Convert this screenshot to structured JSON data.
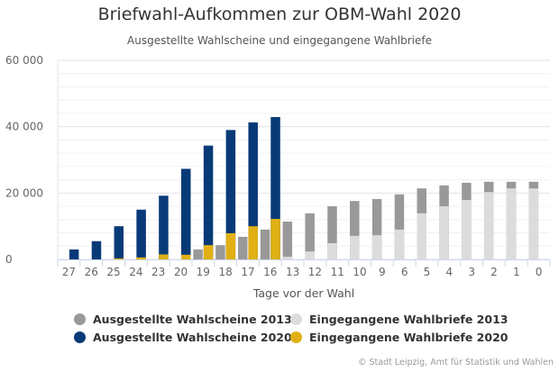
{
  "chart_data": {
    "type": "bar",
    "stacking": "stacked-grouped",
    "title": "Briefwahl-Aufkommen zur OBM-Wahl 2020",
    "subtitle": "Ausgestellte Wahlscheine und eingegangene Wahlbriefe",
    "xlabel": "Tage vor der Wahl",
    "ylabel": "",
    "ylim": [
      0,
      60000
    ],
    "yticks": [
      0,
      20000,
      40000,
      60000
    ],
    "ytick_labels": [
      "0",
      "20 000",
      "40 000",
      "60 000"
    ],
    "minor_grid_step": 4000,
    "grid": true,
    "categories": [
      "27",
      "26",
      "25",
      "24",
      "23",
      "20",
      "19",
      "18",
      "17",
      "16",
      "13",
      "12",
      "11",
      "10",
      "9",
      "6",
      "5",
      "4",
      "3",
      "2",
      "1",
      "0"
    ],
    "series": [
      {
        "name": "Ausgestellte Wahlscheine 2013",
        "stack": "2013",
        "color": "#999999",
        "values": [
          0,
          0,
          0,
          0,
          0,
          0,
          3000,
          4300,
          6800,
          9000,
          11400,
          13900,
          16000,
          17600,
          18200,
          19600,
          21400,
          22300,
          23100,
          23400,
          23400,
          23400
        ]
      },
      {
        "name": "Eingegangene Wahlbriefe 2013",
        "stack": "2013",
        "color": "#dcdcdc",
        "values": [
          0,
          0,
          0,
          0,
          0,
          0,
          0,
          0,
          0,
          0,
          800,
          2400,
          4900,
          7100,
          7300,
          9000,
          13900,
          16000,
          17900,
          20300,
          21400,
          21400
        ]
      },
      {
        "name": "Ausgestellte Wahlscheine 2020",
        "stack": "2020",
        "color": "#083a78",
        "values": [
          3000,
          5500,
          10000,
          15000,
          19200,
          27300,
          34300,
          39000,
          41300,
          42900,
          null,
          null,
          null,
          null,
          null,
          null,
          null,
          null,
          null,
          null,
          null,
          null
        ]
      },
      {
        "name": "Eingegangene Wahlbriefe 2020",
        "stack": "2020",
        "color": "#e0b015",
        "values": [
          0,
          0,
          300,
          600,
          1500,
          1400,
          4300,
          7900,
          10000,
          12200,
          null,
          null,
          null,
          null,
          null,
          null,
          null,
          null,
          null,
          null,
          null,
          null
        ]
      }
    ],
    "legend": {
      "position": "bottom",
      "items": [
        {
          "label": "Ausgestellte Wahlscheine 2013",
          "color": "#999999"
        },
        {
          "label": "Eingegangene Wahlbriefe 2013",
          "color": "#dcdcdc"
        },
        {
          "label": "Ausgestellte Wahlscheine 2020",
          "color": "#083a78"
        },
        {
          "label": "Eingegangene Wahlbriefe 2020",
          "color": "#e0b015"
        }
      ]
    },
    "credit": "© Stadt Leipzig, Amt für Statistik und Wahlen"
  }
}
